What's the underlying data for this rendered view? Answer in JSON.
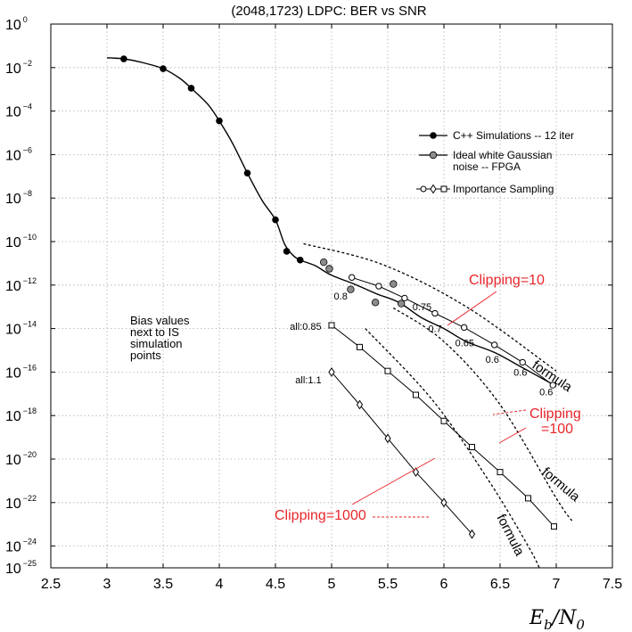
{
  "chart_data": {
    "type": "line",
    "title": "(2048,1723) LDPC: BER vs SNR",
    "xlabel": {
      "main": "E",
      "sub1": "b",
      "sep": "/N",
      "sub2": "0"
    },
    "ylabel": "",
    "xlim": [
      2.5,
      7.5
    ],
    "ylim_log10": [
      -25,
      0
    ],
    "y_scale": "log",
    "grid": true,
    "legend_position": "top-right",
    "x_ticks": [
      {
        "v": 2.5,
        "label": "2.5"
      },
      {
        "v": 3,
        "label": "3"
      },
      {
        "v": 3.5,
        "label": "3.5"
      },
      {
        "v": 4,
        "label": "4"
      },
      {
        "v": 4.5,
        "label": "4.5"
      },
      {
        "v": 5,
        "label": "5"
      },
      {
        "v": 5.5,
        "label": "5.5"
      },
      {
        "v": 6,
        "label": "6"
      },
      {
        "v": 6.5,
        "label": "6.5"
      },
      {
        "v": 7,
        "label": "7"
      },
      {
        "v": 7.5,
        "label": "7.5"
      }
    ],
    "y_ticks": [
      {
        "exp": 0,
        "base": "10",
        "sup": "0"
      },
      {
        "exp": -2,
        "base": "10",
        "sup": "−2"
      },
      {
        "exp": -4,
        "base": "10",
        "sup": "−4"
      },
      {
        "exp": -6,
        "base": "10",
        "sup": "−6"
      },
      {
        "exp": -8,
        "base": "10",
        "sup": "−8"
      },
      {
        "exp": -10,
        "base": "10",
        "sup": "−10"
      },
      {
        "exp": -12,
        "base": "10",
        "sup": "−12"
      },
      {
        "exp": -14,
        "base": "10",
        "sup": "−14"
      },
      {
        "exp": -16,
        "base": "10",
        "sup": "−16"
      },
      {
        "exp": -18,
        "base": "10",
        "sup": "−18"
      },
      {
        "exp": -20,
        "base": "10",
        "sup": "−20"
      },
      {
        "exp": -22,
        "base": "10",
        "sup": "−22"
      },
      {
        "exp": -24,
        "base": "10",
        "sup": "−24"
      },
      {
        "exp": -25,
        "base": "10",
        "sup": "−25"
      }
    ],
    "series": [
      {
        "name": "C++ Simulations -- 12 iter",
        "marker": "filled-circle",
        "fill": "#000000",
        "points": [
          [
            3.15,
            -1.6
          ],
          [
            3.5,
            -2.05
          ],
          [
            3.75,
            -2.95
          ],
          [
            4.0,
            -4.45
          ],
          [
            4.25,
            -6.85
          ],
          [
            4.5,
            -9.0
          ],
          [
            4.6,
            -10.45
          ],
          [
            4.72,
            -10.85
          ]
        ]
      },
      {
        "name": "Ideal white Gaussian noise -- FPGA",
        "marker": "gray-circle",
        "fill": "#8c8c8c",
        "points": [
          [
            4.93,
            -10.95
          ],
          [
            4.98,
            -11.25
          ],
          [
            5.17,
            -12.2
          ],
          [
            5.39,
            -12.8
          ],
          [
            5.55,
            -11.95
          ],
          [
            5.62,
            -12.85
          ]
        ]
      }
    ],
    "cpp_curve": [
      [
        3.0,
        -1.55
      ],
      [
        3.15,
        -1.6
      ],
      [
        3.3,
        -1.75
      ],
      [
        3.5,
        -2.05
      ],
      [
        3.65,
        -2.5
      ],
      [
        3.75,
        -2.95
      ],
      [
        3.9,
        -3.7
      ],
      [
        4.0,
        -4.45
      ],
      [
        4.12,
        -5.5
      ],
      [
        4.25,
        -6.85
      ],
      [
        4.38,
        -8.1
      ],
      [
        4.5,
        -9.0
      ],
      [
        4.58,
        -10.1
      ],
      [
        4.65,
        -10.6
      ],
      [
        4.72,
        -10.85
      ],
      [
        4.85,
        -11.1
      ],
      [
        5.0,
        -11.55
      ],
      [
        5.2,
        -11.95
      ],
      [
        5.4,
        -12.4
      ],
      [
        5.6,
        -12.8
      ],
      [
        5.8,
        -13.5
      ],
      [
        6.0,
        -14.0
      ],
      [
        6.2,
        -14.6
      ],
      [
        6.45,
        -15.1
      ],
      [
        6.7,
        -15.8
      ],
      [
        7.0,
        -16.65
      ]
    ],
    "is_series": [
      {
        "legend_name": "Importance Sampling",
        "marker": "open-circle",
        "line": true,
        "points": [
          [
            5.18,
            -11.65
          ],
          [
            5.42,
            -12.05
          ],
          [
            5.65,
            -12.6
          ],
          [
            5.92,
            -13.3
          ],
          [
            6.18,
            -13.95
          ],
          [
            6.45,
            -14.75
          ],
          [
            6.7,
            -15.55
          ],
          [
            6.97,
            -16.6
          ]
        ]
      },
      {
        "marker": "open-square",
        "line": true,
        "points": [
          [
            5.0,
            -13.85
          ],
          [
            5.25,
            -14.85
          ],
          [
            5.5,
            -15.95
          ],
          [
            5.75,
            -17.05
          ],
          [
            6.0,
            -18.25
          ],
          [
            6.25,
            -19.45
          ],
          [
            6.5,
            -20.6
          ],
          [
            6.75,
            -21.8
          ],
          [
            6.98,
            -23.1
          ]
        ]
      },
      {
        "marker": "open-diamond",
        "line": true,
        "points": [
          [
            5.0,
            -16.0
          ],
          [
            5.25,
            -17.5
          ],
          [
            5.5,
            -19.05
          ],
          [
            5.75,
            -20.6
          ],
          [
            6.0,
            -22.0
          ],
          [
            6.25,
            -23.45
          ]
        ]
      }
    ],
    "formula_lines": [
      {
        "points": [
          [
            4.75,
            -10.1
          ],
          [
            5.45,
            -11.05
          ],
          [
            6.2,
            -13.0
          ],
          [
            7.0,
            -15.95
          ]
        ]
      },
      {
        "points": [
          [
            5.55,
            -13.05
          ],
          [
            6.0,
            -14.6
          ],
          [
            6.5,
            -17.5
          ],
          [
            7.0,
            -21.8
          ],
          [
            7.15,
            -22.9
          ]
        ]
      },
      {
        "points": [
          [
            5.3,
            -14.0
          ],
          [
            5.9,
            -17.3
          ],
          [
            6.4,
            -21.0
          ],
          [
            6.75,
            -24.0
          ],
          [
            6.85,
            -25.0
          ]
        ]
      }
    ],
    "bias_labels": [
      {
        "x": 5.02,
        "y": -12.5,
        "text": "0.8"
      },
      {
        "x": 5.72,
        "y": -13.0,
        "text": "0.75"
      },
      {
        "x": 5.86,
        "y": -14.0,
        "text": "0.7"
      },
      {
        "x": 6.1,
        "y": -14.65,
        "text": "0.65"
      },
      {
        "x": 6.37,
        "y": -15.4,
        "text": "0.6"
      },
      {
        "x": 6.62,
        "y": -16.0,
        "text": "0.6"
      },
      {
        "x": 6.85,
        "y": -16.9,
        "text": "0.6"
      },
      {
        "x": 4.91,
        "y": -13.9,
        "text": "all:0.85"
      },
      {
        "x": 4.91,
        "y": -16.35,
        "text": "all:1.1"
      }
    ],
    "annotations": {
      "bias_note": [
        "Bias values",
        "next to IS",
        "simulation",
        "points"
      ],
      "formula_label": "formula",
      "clip10": "Clipping=10",
      "clip100_line1": "Clipping",
      "clip100_line2": "=100",
      "clip1000": "Clipping=1000"
    },
    "legend": [
      {
        "lines": [
          "C++ Simulations -- 12 iter"
        ],
        "marker": "filled-circle"
      },
      {
        "lines": [
          "Ideal white Gaussian",
          "noise -- FPGA"
        ],
        "marker": "gray-circle"
      },
      {
        "lines": [
          "Importance Sampling"
        ],
        "marker": "is-set"
      }
    ],
    "colors": {
      "accent_red": "#e8262b",
      "grid": "#9a9a9a",
      "gray_marker": "#8c8c8c"
    }
  }
}
